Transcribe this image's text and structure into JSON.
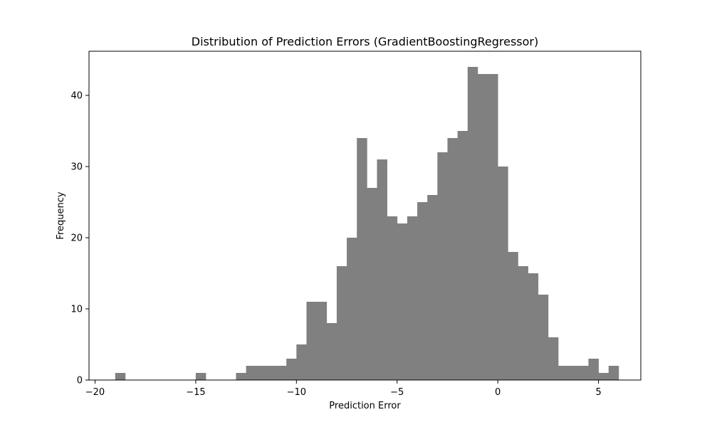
{
  "chart_data": {
    "type": "bar",
    "title": "Distribution of Prediction Errors (GradientBoostingRegressor)",
    "xlabel": "Prediction Error",
    "ylabel": "Frequency",
    "bar_color": "#808080",
    "xlim": [
      -20.3,
      7.1
    ],
    "ylim": [
      0,
      46.2
    ],
    "bin_start": -19.0,
    "bin_width": 0.5,
    "values": [
      1,
      0,
      0,
      0,
      0,
      0,
      0,
      0,
      1,
      0,
      0,
      0,
      1,
      2,
      2,
      2,
      2,
      3,
      5,
      11,
      11,
      8,
      16,
      20,
      34,
      27,
      31,
      23,
      22,
      23,
      25,
      26,
      32,
      34,
      35,
      44,
      43,
      43,
      30,
      18,
      16,
      15,
      12,
      6,
      2,
      2,
      2,
      3,
      1,
      2
    ],
    "x_ticks": [
      {
        "value": -20,
        "label": "−20"
      },
      {
        "value": -15,
        "label": "−15"
      },
      {
        "value": -10,
        "label": "−10"
      },
      {
        "value": -5,
        "label": "−5"
      },
      {
        "value": 0,
        "label": "0"
      },
      {
        "value": 5,
        "label": "5"
      }
    ],
    "y_ticks": [
      {
        "value": 0,
        "label": "0"
      },
      {
        "value": 10,
        "label": "10"
      },
      {
        "value": 20,
        "label": "20"
      },
      {
        "value": 30,
        "label": "30"
      },
      {
        "value": 40,
        "label": "40"
      }
    ],
    "grid": false,
    "legend": "none"
  }
}
